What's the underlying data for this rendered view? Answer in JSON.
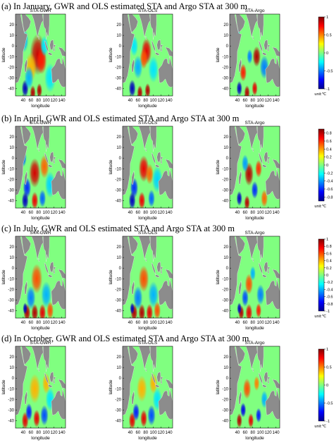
{
  "colors": {
    "land": "#8c8c8c",
    "colormap": [
      "#00008f",
      "#0000ff",
      "#0080ff",
      "#00ffff",
      "#80ff80",
      "#ffff00",
      "#ff8000",
      "#ff0000",
      "#800000"
    ]
  },
  "rows": [
    {
      "heading": "(a)  In January, GWR and OLS estimated STA and Argo STA at 300 m"
    },
    {
      "heading": "(b)  In April, GWR and OLS estimated STA and Argo STA at 300 m"
    },
    {
      "heading": "(c)  In July, GWR and OLS estimated STA and Argo STA at 300 m"
    },
    {
      "heading": "(d)  In October, GWR and OLS estimated STA and Argo STA at 300 m"
    }
  ],
  "chart_data": [
    {
      "type": "heatmap",
      "month": "January",
      "panel_titles": [
        "STA-GWR",
        "STA-OLS",
        "STA-Argo"
      ],
      "xlabel": "longitude",
      "ylabel": "latitude",
      "xlim": [
        20,
        150
      ],
      "ylim": [
        -47,
        30
      ],
      "x_ticks": [
        "40",
        "60",
        "80",
        "100",
        "120",
        "140"
      ],
      "y_ticks": [
        "20",
        "10",
        "0",
        "-10",
        "-20",
        "-30",
        "-40"
      ],
      "colorbar": {
        "min": -1,
        "max": 1,
        "ticks": [
          "1",
          "0.5",
          "0",
          "-0.5",
          "-1"
        ],
        "unit": "unit:℃"
      },
      "blobs": [
        [
          [
            78,
            -8,
            14,
            0.85
          ],
          [
            88,
            -14,
            9,
            0.7
          ],
          [
            60,
            -20,
            10,
            0.4
          ],
          [
            45,
            -40,
            6,
            -0.9
          ],
          [
            65,
            -44,
            5,
            0.9
          ],
          [
            82,
            -42,
            5,
            0.9
          ],
          [
            55,
            -30,
            8,
            -0.4
          ],
          [
            110,
            -30,
            10,
            -0.3
          ],
          [
            42,
            5,
            8,
            -0.4
          ],
          [
            95,
            0,
            7,
            -0.3
          ]
        ],
        [
          [
            82,
            -5,
            9,
            0.8
          ],
          [
            75,
            -12,
            7,
            0.6
          ],
          [
            60,
            -20,
            8,
            -0.4
          ],
          [
            45,
            -40,
            6,
            -0.9
          ],
          [
            65,
            -44,
            5,
            0.9
          ],
          [
            85,
            -42,
            5,
            0.9
          ],
          [
            100,
            -22,
            9,
            -0.3
          ],
          [
            50,
            0,
            7,
            -0.3
          ]
        ],
        [
          [
            90,
            -10,
            7,
            0.9
          ],
          [
            72,
            -10,
            5,
            -0.5
          ],
          [
            55,
            -25,
            6,
            0.7
          ],
          [
            45,
            -40,
            5,
            -0.9
          ],
          [
            65,
            -44,
            5,
            0.9
          ],
          [
            85,
            -40,
            5,
            0.8
          ],
          [
            110,
            -20,
            8,
            -0.5
          ],
          [
            40,
            10,
            5,
            -0.5
          ]
        ]
      ]
    },
    {
      "type": "heatmap",
      "month": "April",
      "panel_titles": [
        "STA-GWR",
        "STA-OLS",
        "STA-Argo"
      ],
      "xlabel": "longitude",
      "ylabel": "latitude",
      "xlim": [
        20,
        150
      ],
      "ylim": [
        -47,
        30
      ],
      "x_ticks": [
        "40",
        "60",
        "80",
        "100",
        "120",
        "140"
      ],
      "y_ticks": [
        "20",
        "10",
        "0",
        "-10",
        "-20",
        "-30",
        "-40"
      ],
      "colorbar": {
        "min": -0.9,
        "max": 0.9,
        "ticks": [
          "0.8",
          "0.6",
          "0.4",
          "0.2",
          "0",
          "-0.2",
          "-0.4",
          "-0.6",
          "-0.8"
        ],
        "unit": "unit:℃"
      },
      "blobs": [
        [
          [
            70,
            -14,
            10,
            0.75
          ],
          [
            95,
            -8,
            8,
            0.5
          ],
          [
            50,
            -28,
            7,
            -0.6
          ],
          [
            45,
            -40,
            6,
            -0.8
          ],
          [
            70,
            -40,
            6,
            0.7
          ],
          [
            90,
            -38,
            6,
            -0.5
          ],
          [
            110,
            -25,
            9,
            -0.3
          ],
          [
            40,
            0,
            6,
            -0.5
          ]
        ],
        [
          [
            75,
            -10,
            9,
            0.7
          ],
          [
            90,
            -15,
            7,
            0.5
          ],
          [
            50,
            -28,
            7,
            -0.6
          ],
          [
            45,
            -40,
            6,
            -0.8
          ],
          [
            70,
            -40,
            6,
            0.7
          ],
          [
            95,
            -38,
            6,
            -0.5
          ],
          [
            110,
            -20,
            9,
            -0.3
          ]
        ],
        [
          [
            70,
            -15,
            8,
            0.8
          ],
          [
            95,
            -10,
            6,
            0.6
          ],
          [
            85,
            -30,
            6,
            -0.6
          ],
          [
            45,
            -38,
            5,
            -0.8
          ],
          [
            65,
            -42,
            5,
            0.8
          ],
          [
            110,
            -38,
            6,
            0.5
          ],
          [
            40,
            5,
            5,
            -0.6
          ],
          [
            60,
            -5,
            6,
            -0.4
          ]
        ]
      ]
    },
    {
      "type": "heatmap",
      "month": "July",
      "panel_titles": [
        "STA-GWR",
        "STA-OLS",
        "STA-Argo"
      ],
      "xlabel": "longitude",
      "ylabel": "latitude",
      "xlim": [
        20,
        150
      ],
      "ylim": [
        -47,
        30
      ],
      "x_ticks": [
        "40",
        "60",
        "80",
        "100",
        "120",
        "140"
      ],
      "y_ticks": [
        "20",
        "10",
        "0",
        "-10",
        "-20",
        "-30",
        "-40"
      ],
      "colorbar": {
        "min": -1,
        "max": 1,
        "ticks": [
          "1",
          "0.8",
          "0.6",
          "0.4",
          "0.2",
          "0",
          "-0.2",
          "-0.4",
          "-0.6",
          "-0.8",
          "-1"
        ],
        "unit": "unit:℃"
      },
      "blobs": [
        [
          [
            75,
            -10,
            10,
            0.6
          ],
          [
            50,
            -42,
            6,
            0.9
          ],
          [
            70,
            -42,
            6,
            0.9
          ],
          [
            90,
            -42,
            6,
            0.8
          ],
          [
            60,
            -28,
            8,
            -0.5
          ],
          [
            100,
            -25,
            9,
            -0.4
          ],
          [
            45,
            -38,
            4,
            -0.9
          ],
          [
            110,
            -40,
            6,
            0.6
          ]
        ],
        [
          [
            75,
            -10,
            9,
            0.6
          ],
          [
            50,
            -42,
            6,
            0.9
          ],
          [
            70,
            -42,
            6,
            0.9
          ],
          [
            90,
            -42,
            6,
            0.8
          ],
          [
            60,
            -28,
            8,
            -0.5
          ],
          [
            100,
            -25,
            9,
            -0.4
          ],
          [
            45,
            -38,
            4,
            -0.9
          ],
          [
            110,
            -40,
            6,
            0.6
          ]
        ],
        [
          [
            70,
            -15,
            7,
            0.6
          ],
          [
            50,
            -42,
            5,
            0.9
          ],
          [
            70,
            -42,
            6,
            0.8
          ],
          [
            95,
            -40,
            5,
            0.7
          ],
          [
            60,
            -28,
            6,
            -0.6
          ],
          [
            100,
            -25,
            7,
            -0.5
          ],
          [
            45,
            -38,
            4,
            -0.9
          ],
          [
            80,
            -5,
            5,
            -0.4
          ]
        ]
      ]
    },
    {
      "type": "heatmap",
      "month": "October",
      "panel_titles": [
        "STA-GWR",
        "STA-OLS",
        "STA-Argo"
      ],
      "xlabel": "longitude",
      "ylabel": "latitude",
      "xlim": [
        20,
        150
      ],
      "ylim": [
        -47,
        30
      ],
      "x_ticks": [
        "40",
        "60",
        "80",
        "100",
        "120",
        "140"
      ],
      "y_ticks": [
        "20",
        "10",
        "0",
        "-10",
        "-20",
        "-30",
        "-40"
      ],
      "colorbar": {
        "min": -1,
        "max": 1,
        "ticks": [
          "1",
          "0.5",
          "0",
          "-0.5",
          "-1"
        ],
        "unit": "unit:℃"
      },
      "blobs": [
        [
          [
            70,
            -10,
            10,
            0.4
          ],
          [
            45,
            -40,
            6,
            0.8
          ],
          [
            75,
            -38,
            6,
            0.8
          ],
          [
            55,
            -32,
            6,
            -0.7
          ],
          [
            95,
            -35,
            7,
            -0.6
          ],
          [
            110,
            -20,
            8,
            -0.3
          ],
          [
            100,
            -5,
            7,
            0.4
          ]
        ],
        [
          [
            70,
            -10,
            9,
            0.4
          ],
          [
            45,
            -40,
            6,
            0.8
          ],
          [
            75,
            -38,
            6,
            0.8
          ],
          [
            55,
            -32,
            6,
            -0.7
          ],
          [
            95,
            -35,
            7,
            -0.6
          ],
          [
            110,
            -20,
            8,
            -0.3
          ],
          [
            100,
            -5,
            7,
            0.4
          ]
        ],
        [
          [
            65,
            -10,
            7,
            0.6
          ],
          [
            45,
            -40,
            5,
            0.9
          ],
          [
            75,
            -40,
            5,
            0.8
          ],
          [
            55,
            -30,
            5,
            -0.8
          ],
          [
            95,
            -35,
            5,
            -0.7
          ],
          [
            110,
            -20,
            6,
            -0.4
          ],
          [
            90,
            -5,
            5,
            0.5
          ]
        ]
      ]
    }
  ]
}
